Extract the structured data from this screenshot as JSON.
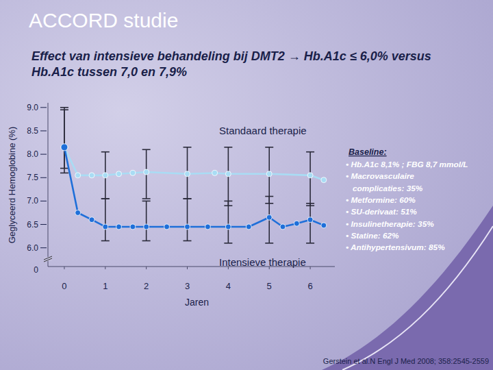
{
  "chart_data": {
    "type": "line",
    "title": "ACCORD studie",
    "subtitle": [
      "Effect van intensieve behandeling bij DMT2 → Hb.A1c ≤ 6,0% versus",
      "Hb.A1c tussen 7,0 en 7,9%"
    ],
    "x_label": "Jaren",
    "y_label": "Geglyceerd Hemoglobine (%)",
    "xlim": [
      -0.4,
      6.6
    ],
    "xticks": [
      0,
      1,
      2,
      3,
      4,
      5,
      6
    ],
    "ylim": [
      5.6,
      9.1
    ],
    "yticks": [
      {
        "value": 6,
        "label": "6.0"
      },
      {
        "value": 6.5,
        "label": "6.5"
      },
      {
        "value": 7,
        "label": "7.0"
      },
      {
        "value": 7.5,
        "label": "7.5"
      },
      {
        "value": 8,
        "label": "8.0"
      },
      {
        "value": 8.5,
        "label": "8.5"
      },
      {
        "value": 9,
        "label": "9.0"
      }
    ],
    "axis_break_value": 0,
    "grid": false,
    "marker": "circle",
    "series": [
      {
        "name": "Standaard therapie",
        "color": "#a9dcf4",
        "x": [
          0,
          0.33,
          0.67,
          1,
          1.33,
          1.67,
          2,
          3,
          3.67,
          4,
          5,
          6,
          6.33
        ],
        "values": [
          8.15,
          7.55,
          7.55,
          7.55,
          7.58,
          7.6,
          7.62,
          7.58,
          7.6,
          7.58,
          7.58,
          7.55,
          7.45
        ],
        "error_low": [
          7.7,
          null,
          null,
          7.05,
          null,
          null,
          7.05,
          7.05,
          null,
          6.9,
          6.95,
          6.9,
          null
        ],
        "error_high": [
          9.0,
          null,
          null,
          8.05,
          null,
          null,
          8.1,
          8.15,
          null,
          8.15,
          8.15,
          8.05,
          null
        ]
      },
      {
        "name": "Intensieve therapie",
        "color": "#1e6fd9",
        "x": [
          0,
          0.33,
          0.67,
          1,
          1.33,
          1.67,
          2,
          2.5,
          3,
          3.5,
          4,
          4.5,
          5,
          5.33,
          5.67,
          6,
          6.33
        ],
        "values": [
          8.15,
          6.75,
          6.6,
          6.45,
          6.45,
          6.45,
          6.45,
          6.45,
          6.45,
          6.45,
          6.45,
          6.45,
          6.65,
          6.45,
          6.52,
          6.6,
          6.48
        ],
        "error_low": [
          7.6,
          null,
          null,
          6.15,
          null,
          null,
          6.15,
          null,
          6.15,
          null,
          6.1,
          null,
          6.1,
          null,
          null,
          6.1,
          null
        ],
        "error_high": [
          8.95,
          null,
          null,
          7.05,
          null,
          null,
          7.0,
          null,
          7.05,
          null,
          7.0,
          null,
          7.1,
          null,
          null,
          6.95,
          null
        ]
      }
    ],
    "baseline": {
      "title": "Baseline:",
      "lines": [
        "• Hb.A1c 8,1% ; FBG 8,7 mmol/L",
        "• Macrovasculaire",
        "complicaties: 35%",
        "• Metformine: 60%",
        "• SU-derivaat: 51%",
        "• Insulinetherapie: 35%",
        "• Statine: 62%",
        "• Antihypertensivum: 85%"
      ]
    },
    "source": "Gerstein et al.N Engl J Med 2008; 358:2545-2559"
  }
}
